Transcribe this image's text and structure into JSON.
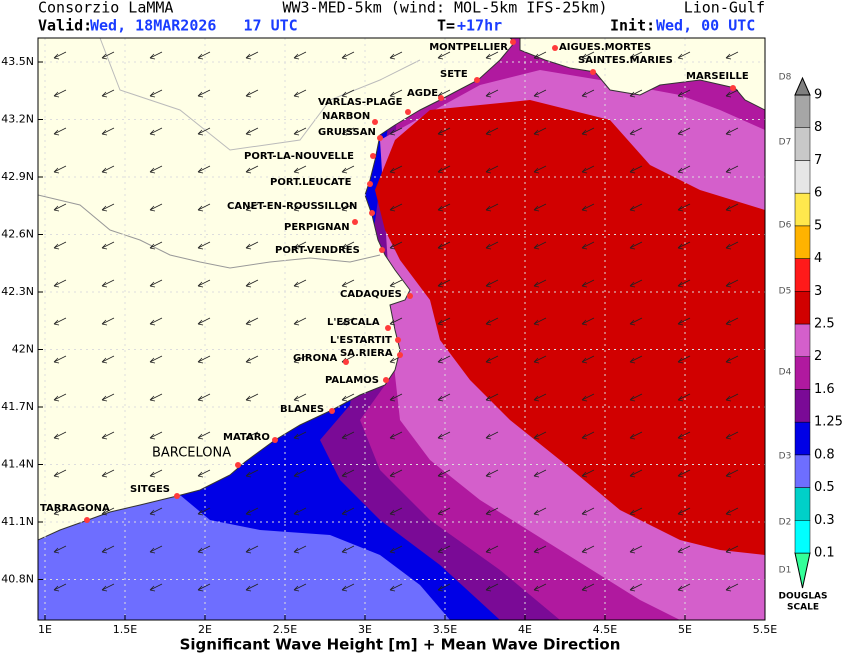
{
  "header": {
    "org": "Consorzio LaMMA",
    "model": "WW3-MED-5km (wind: MOL-5km IFS-25km)",
    "region": "Lion-Gulf",
    "valid_label": "Valid:",
    "valid_value": "Wed, 18MAR2026   17 UTC",
    "t_label": "T=",
    "t_value": "+17hr",
    "init_label": "Init:",
    "init_value": "Wed, 00 UTC"
  },
  "title": "Significant Wave Height [m] + Mean Wave Direction",
  "lat_ticks": [
    "43.5N",
    "43.2N",
    "42.9N",
    "42.6N",
    "42.3N",
    "42N",
    "41.7N",
    "41.4N",
    "41.1N",
    "40.8N"
  ],
  "lon_ticks": [
    "1E",
    "1.5E",
    "2E",
    "2.5E",
    "3E",
    "3.5E",
    "4E",
    "4.5E",
    "5E",
    "5.5E"
  ],
  "cities": [
    "MONTPELLIER",
    "AIGUES.MORTES",
    "SAINTES.MARIES",
    "MARSEILLE",
    "SETE",
    "AGDE",
    "VARLAS-PLAGE",
    "NARBON",
    "GRUISSAN",
    "PORT-LA-NOUVELLE",
    "PORT.LEUCATE",
    "CANET-EN-ROUSSILLON",
    "PERPIGNAN",
    "PORT-VENDRES",
    "CADAQUES",
    "L'ESCALA",
    "L'ESTARTIT",
    "GIRONA",
    "SA.RIERA",
    "PALAMOS",
    "BLANES",
    "MATARO",
    "BARCELONA",
    "SITGES",
    "TARRAGONA"
  ],
  "colorbar": {
    "levels": [
      "0.1",
      "0.3",
      "0.5",
      "0.8",
      "1.25",
      "1.6",
      "2",
      "2.5",
      "3",
      "4",
      "5",
      "6",
      "7",
      "8",
      "9"
    ],
    "colors": [
      "#33ff99",
      "#00ffff",
      "#00d0c8",
      "#6e6eff",
      "#0000e6",
      "#7a0a96",
      "#b0199f",
      "#d45fcb",
      "#d10000",
      "#ff1a1a",
      "#ffb300",
      "#ffe84d",
      "#e6e6e6",
      "#c8c8c8",
      "#a6a6a6",
      "#808080"
    ],
    "douglas": [
      "D1",
      "D2",
      "D3",
      "D4",
      "D5",
      "D6",
      "D7",
      "D8"
    ],
    "scale_1": "DOUGLAS",
    "scale_2": "SCALE"
  }
}
